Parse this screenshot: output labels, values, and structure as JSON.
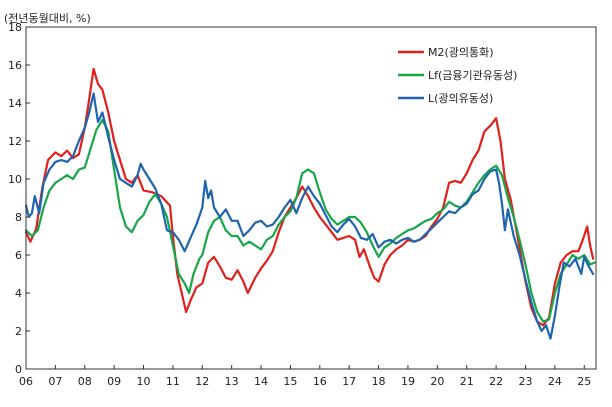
{
  "chart_data": {
    "type": "line",
    "unit_label": "(전년동월대비, %)",
    "title": "",
    "xlabel": "",
    "ylabel": "",
    "ylim": [
      0,
      18
    ],
    "y_ticks": [
      "0",
      "2",
      "4",
      "6",
      "8",
      "10",
      "12",
      "14",
      "16",
      "18"
    ],
    "x_range": [
      2006.0,
      2025.4
    ],
    "x_tick_labels": [
      "06",
      "07",
      "08",
      "09",
      "10",
      "11",
      "12",
      "13",
      "14",
      "15",
      "16",
      "17",
      "18",
      "19",
      "20",
      "21",
      "22",
      "23",
      "24",
      "25"
    ],
    "grid": false,
    "legend_position": "top-right",
    "series": [
      {
        "name": "M2(광의통화)",
        "color": "#e0201b",
        "points": [
          [
            2006.0,
            7.2
          ],
          [
            2006.15,
            6.7
          ],
          [
            2006.35,
            7.4
          ],
          [
            2006.55,
            9.5
          ],
          [
            2006.75,
            11.0
          ],
          [
            2007.0,
            11.4
          ],
          [
            2007.2,
            11.2
          ],
          [
            2007.4,
            11.5
          ],
          [
            2007.6,
            11.1
          ],
          [
            2007.8,
            11.3
          ],
          [
            2008.0,
            12.7
          ],
          [
            2008.15,
            14.2
          ],
          [
            2008.3,
            15.8
          ],
          [
            2008.45,
            15.0
          ],
          [
            2008.6,
            14.7
          ],
          [
            2008.8,
            13.5
          ],
          [
            2009.0,
            12.0
          ],
          [
            2009.2,
            11.0
          ],
          [
            2009.4,
            10.0
          ],
          [
            2009.6,
            9.8
          ],
          [
            2009.8,
            10.2
          ],
          [
            2010.0,
            9.4
          ],
          [
            2010.3,
            9.3
          ],
          [
            2010.6,
            9.1
          ],
          [
            2010.9,
            8.6
          ],
          [
            2011.0,
            7.0
          ],
          [
            2011.15,
            5.0
          ],
          [
            2011.3,
            4.0
          ],
          [
            2011.45,
            3.0
          ],
          [
            2011.6,
            3.6
          ],
          [
            2011.8,
            4.3
          ],
          [
            2012.0,
            4.5
          ],
          [
            2012.2,
            5.6
          ],
          [
            2012.4,
            5.9
          ],
          [
            2012.6,
            5.4
          ],
          [
            2012.8,
            4.8
          ],
          [
            2013.0,
            4.7
          ],
          [
            2013.2,
            5.2
          ],
          [
            2013.4,
            4.6
          ],
          [
            2013.55,
            4.0
          ],
          [
            2013.8,
            4.8
          ],
          [
            2014.0,
            5.3
          ],
          [
            2014.2,
            5.7
          ],
          [
            2014.4,
            6.2
          ],
          [
            2014.6,
            7.2
          ],
          [
            2014.8,
            8.0
          ],
          [
            2015.0,
            8.5
          ],
          [
            2015.2,
            9.0
          ],
          [
            2015.4,
            9.6
          ],
          [
            2015.6,
            9.1
          ],
          [
            2015.8,
            8.5
          ],
          [
            2016.0,
            8.0
          ],
          [
            2016.2,
            7.6
          ],
          [
            2016.4,
            7.2
          ],
          [
            2016.6,
            6.8
          ],
          [
            2016.8,
            6.9
          ],
          [
            2017.0,
            7.0
          ],
          [
            2017.2,
            6.8
          ],
          [
            2017.35,
            5.9
          ],
          [
            2017.5,
            6.3
          ],
          [
            2017.7,
            5.4
          ],
          [
            2017.85,
            4.8
          ],
          [
            2018.0,
            4.6
          ],
          [
            2018.2,
            5.5
          ],
          [
            2018.4,
            6.0
          ],
          [
            2018.6,
            6.3
          ],
          [
            2018.8,
            6.5
          ],
          [
            2019.0,
            6.8
          ],
          [
            2019.2,
            6.7
          ],
          [
            2019.4,
            6.8
          ],
          [
            2019.6,
            7.0
          ],
          [
            2019.8,
            7.5
          ],
          [
            2020.0,
            7.9
          ],
          [
            2020.2,
            8.5
          ],
          [
            2020.4,
            9.8
          ],
          [
            2020.6,
            9.9
          ],
          [
            2020.8,
            9.8
          ],
          [
            2021.0,
            10.3
          ],
          [
            2021.2,
            11.0
          ],
          [
            2021.4,
            11.5
          ],
          [
            2021.6,
            12.5
          ],
          [
            2021.8,
            12.8
          ],
          [
            2022.0,
            13.2
          ],
          [
            2022.15,
            12.0
          ],
          [
            2022.3,
            10.0
          ],
          [
            2022.5,
            8.9
          ],
          [
            2022.7,
            7.2
          ],
          [
            2022.9,
            5.5
          ],
          [
            2023.0,
            4.6
          ],
          [
            2023.2,
            3.2
          ],
          [
            2023.4,
            2.5
          ],
          [
            2023.6,
            2.3
          ],
          [
            2023.8,
            2.7
          ],
          [
            2024.0,
            4.5
          ],
          [
            2024.2,
            5.6
          ],
          [
            2024.4,
            6.0
          ],
          [
            2024.6,
            6.2
          ],
          [
            2024.8,
            6.2
          ],
          [
            2024.95,
            6.8
          ],
          [
            2025.1,
            7.5
          ],
          [
            2025.2,
            6.5
          ],
          [
            2025.3,
            5.8
          ]
        ]
      },
      {
        "name": "Lf(금융기관유동성)",
        "color": "#18a64a",
        "points": [
          [
            2006.0,
            7.3
          ],
          [
            2006.2,
            7.0
          ],
          [
            2006.4,
            7.3
          ],
          [
            2006.6,
            8.5
          ],
          [
            2006.8,
            9.4
          ],
          [
            2007.0,
            9.8
          ],
          [
            2007.2,
            10.0
          ],
          [
            2007.4,
            10.2
          ],
          [
            2007.6,
            10.0
          ],
          [
            2007.8,
            10.5
          ],
          [
            2008.0,
            10.6
          ],
          [
            2008.2,
            11.6
          ],
          [
            2008.4,
            12.6
          ],
          [
            2008.6,
            13.1
          ],
          [
            2008.8,
            12.5
          ],
          [
            2009.0,
            10.5
          ],
          [
            2009.2,
            8.5
          ],
          [
            2009.4,
            7.5
          ],
          [
            2009.6,
            7.2
          ],
          [
            2009.8,
            7.8
          ],
          [
            2010.0,
            8.1
          ],
          [
            2010.2,
            8.8
          ],
          [
            2010.4,
            9.2
          ],
          [
            2010.6,
            8.7
          ],
          [
            2010.8,
            8.0
          ],
          [
            2011.0,
            6.5
          ],
          [
            2011.2,
            5.0
          ],
          [
            2011.4,
            4.5
          ],
          [
            2011.55,
            4.0
          ],
          [
            2011.7,
            5.0
          ],
          [
            2011.9,
            5.8
          ],
          [
            2012.0,
            6.0
          ],
          [
            2012.2,
            7.2
          ],
          [
            2012.4,
            7.8
          ],
          [
            2012.6,
            8.0
          ],
          [
            2012.8,
            7.3
          ],
          [
            2013.0,
            7.0
          ],
          [
            2013.2,
            7.0
          ],
          [
            2013.4,
            6.5
          ],
          [
            2013.6,
            6.7
          ],
          [
            2013.8,
            6.5
          ],
          [
            2014.0,
            6.3
          ],
          [
            2014.2,
            6.8
          ],
          [
            2014.4,
            7.0
          ],
          [
            2014.6,
            7.6
          ],
          [
            2014.8,
            8.0
          ],
          [
            2015.0,
            8.3
          ],
          [
            2015.2,
            9.0
          ],
          [
            2015.4,
            10.3
          ],
          [
            2015.6,
            10.5
          ],
          [
            2015.8,
            10.3
          ],
          [
            2016.0,
            9.3
          ],
          [
            2016.2,
            8.4
          ],
          [
            2016.4,
            7.9
          ],
          [
            2016.6,
            7.6
          ],
          [
            2016.8,
            7.8
          ],
          [
            2017.0,
            8.0
          ],
          [
            2017.2,
            8.0
          ],
          [
            2017.4,
            7.7
          ],
          [
            2017.6,
            7.2
          ],
          [
            2017.8,
            6.5
          ],
          [
            2018.0,
            5.9
          ],
          [
            2018.2,
            6.4
          ],
          [
            2018.4,
            6.6
          ],
          [
            2018.6,
            6.9
          ],
          [
            2018.8,
            7.1
          ],
          [
            2019.0,
            7.3
          ],
          [
            2019.2,
            7.4
          ],
          [
            2019.4,
            7.6
          ],
          [
            2019.6,
            7.8
          ],
          [
            2019.8,
            7.9
          ],
          [
            2020.0,
            8.2
          ],
          [
            2020.2,
            8.4
          ],
          [
            2020.4,
            8.8
          ],
          [
            2020.6,
            8.6
          ],
          [
            2020.8,
            8.5
          ],
          [
            2021.0,
            8.8
          ],
          [
            2021.2,
            9.3
          ],
          [
            2021.4,
            9.8
          ],
          [
            2021.6,
            10.2
          ],
          [
            2021.8,
            10.5
          ],
          [
            2022.0,
            10.7
          ],
          [
            2022.2,
            10.2
          ],
          [
            2022.4,
            9.0
          ],
          [
            2022.6,
            8.0
          ],
          [
            2022.8,
            6.8
          ],
          [
            2023.0,
            5.5
          ],
          [
            2023.2,
            4.0
          ],
          [
            2023.4,
            3.0
          ],
          [
            2023.6,
            2.5
          ],
          [
            2023.8,
            2.6
          ],
          [
            2024.0,
            4.0
          ],
          [
            2024.2,
            5.0
          ],
          [
            2024.4,
            5.5
          ],
          [
            2024.6,
            6.0
          ],
          [
            2024.8,
            5.8
          ],
          [
            2025.0,
            6.0
          ],
          [
            2025.2,
            5.5
          ],
          [
            2025.35,
            5.6
          ]
        ]
      },
      {
        "name": "L(광의유동성)",
        "color": "#1f64ad",
        "points": [
          [
            2006.0,
            8.6
          ],
          [
            2006.1,
            8.0
          ],
          [
            2006.2,
            8.2
          ],
          [
            2006.3,
            9.1
          ],
          [
            2006.45,
            8.2
          ],
          [
            2006.6,
            9.8
          ],
          [
            2006.8,
            10.5
          ],
          [
            2007.0,
            10.9
          ],
          [
            2007.2,
            11.0
          ],
          [
            2007.4,
            10.9
          ],
          [
            2007.6,
            11.2
          ],
          [
            2007.8,
            12.0
          ],
          [
            2008.0,
            12.7
          ],
          [
            2008.15,
            13.5
          ],
          [
            2008.3,
            14.5
          ],
          [
            2008.45,
            13.0
          ],
          [
            2008.6,
            13.5
          ],
          [
            2008.8,
            12.2
          ],
          [
            2009.0,
            11.0
          ],
          [
            2009.2,
            10.0
          ],
          [
            2009.4,
            9.8
          ],
          [
            2009.6,
            9.6
          ],
          [
            2009.8,
            10.2
          ],
          [
            2009.9,
            10.8
          ],
          [
            2010.0,
            10.5
          ],
          [
            2010.2,
            10.0
          ],
          [
            2010.4,
            9.5
          ],
          [
            2010.6,
            8.7
          ],
          [
            2010.8,
            7.3
          ],
          [
            2011.0,
            7.2
          ],
          [
            2011.2,
            6.8
          ],
          [
            2011.4,
            6.2
          ],
          [
            2011.6,
            6.9
          ],
          [
            2011.8,
            7.6
          ],
          [
            2012.0,
            8.5
          ],
          [
            2012.1,
            9.9
          ],
          [
            2012.2,
            9.0
          ],
          [
            2012.3,
            9.4
          ],
          [
            2012.4,
            8.5
          ],
          [
            2012.6,
            8.0
          ],
          [
            2012.8,
            8.4
          ],
          [
            2013.0,
            7.8
          ],
          [
            2013.2,
            7.8
          ],
          [
            2013.4,
            7.0
          ],
          [
            2013.6,
            7.3
          ],
          [
            2013.8,
            7.7
          ],
          [
            2014.0,
            7.8
          ],
          [
            2014.2,
            7.5
          ],
          [
            2014.4,
            7.6
          ],
          [
            2014.6,
            8.0
          ],
          [
            2014.8,
            8.5
          ],
          [
            2015.0,
            8.9
          ],
          [
            2015.2,
            8.2
          ],
          [
            2015.4,
            9.0
          ],
          [
            2015.6,
            9.6
          ],
          [
            2015.8,
            9.1
          ],
          [
            2016.0,
            8.7
          ],
          [
            2016.2,
            8.1
          ],
          [
            2016.4,
            7.5
          ],
          [
            2016.6,
            7.2
          ],
          [
            2016.8,
            7.6
          ],
          [
            2017.0,
            7.9
          ],
          [
            2017.2,
            7.5
          ],
          [
            2017.4,
            6.9
          ],
          [
            2017.6,
            6.8
          ],
          [
            2017.8,
            7.1
          ],
          [
            2018.0,
            6.4
          ],
          [
            2018.2,
            6.7
          ],
          [
            2018.4,
            6.8
          ],
          [
            2018.6,
            6.6
          ],
          [
            2018.8,
            6.8
          ],
          [
            2019.0,
            6.9
          ],
          [
            2019.2,
            6.7
          ],
          [
            2019.4,
            6.8
          ],
          [
            2019.6,
            7.1
          ],
          [
            2019.8,
            7.4
          ],
          [
            2020.0,
            7.7
          ],
          [
            2020.2,
            8.0
          ],
          [
            2020.4,
            8.3
          ],
          [
            2020.6,
            8.2
          ],
          [
            2020.8,
            8.5
          ],
          [
            2021.0,
            8.7
          ],
          [
            2021.2,
            9.2
          ],
          [
            2021.4,
            9.4
          ],
          [
            2021.6,
            10.0
          ],
          [
            2021.8,
            10.4
          ],
          [
            2022.0,
            10.5
          ],
          [
            2022.1,
            9.8
          ],
          [
            2022.2,
            8.7
          ],
          [
            2022.3,
            7.3
          ],
          [
            2022.4,
            8.4
          ],
          [
            2022.6,
            7.0
          ],
          [
            2022.8,
            6.0
          ],
          [
            2023.0,
            4.7
          ],
          [
            2023.2,
            3.5
          ],
          [
            2023.4,
            2.5
          ],
          [
            2023.55,
            2.0
          ],
          [
            2023.7,
            2.3
          ],
          [
            2023.85,
            1.6
          ],
          [
            2024.0,
            2.8
          ],
          [
            2024.15,
            4.3
          ],
          [
            2024.3,
            5.6
          ],
          [
            2024.5,
            5.4
          ],
          [
            2024.7,
            5.8
          ],
          [
            2024.9,
            5.0
          ],
          [
            2025.0,
            5.9
          ],
          [
            2025.15,
            5.4
          ],
          [
            2025.3,
            5.0
          ]
        ]
      }
    ]
  }
}
